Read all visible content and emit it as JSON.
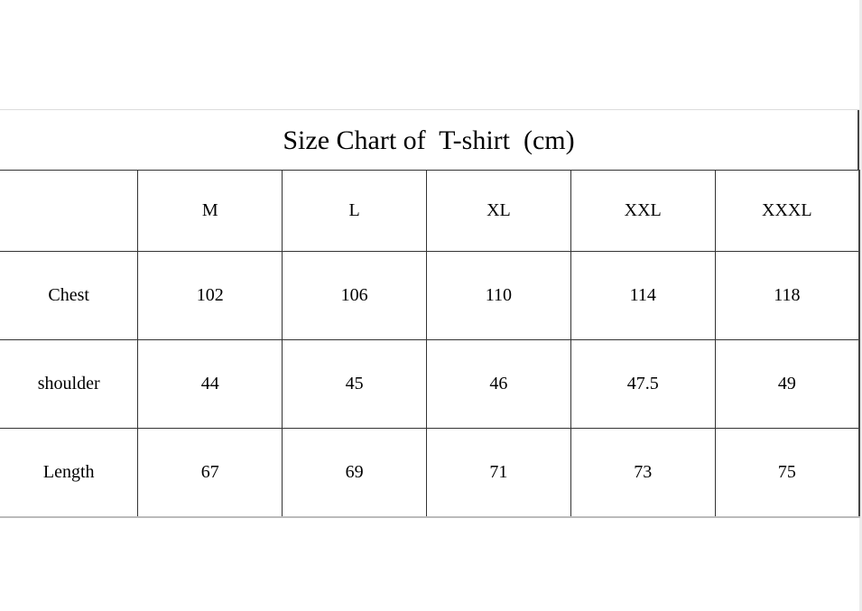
{
  "title": "Size Chart of  T-shirt  (cm)",
  "columns": [
    "",
    "M",
    "L",
    "XL",
    "XXL",
    "XXXL"
  ],
  "rows": [
    {
      "label": "Chest",
      "values": [
        "102",
        "106",
        "110",
        "114",
        "118"
      ]
    },
    {
      "label": "shoulder",
      "values": [
        "44",
        "45",
        "46",
        "47.5",
        "49"
      ]
    },
    {
      "label": "Length",
      "values": [
        "67",
        "69",
        "71",
        "73",
        "75"
      ]
    }
  ]
}
